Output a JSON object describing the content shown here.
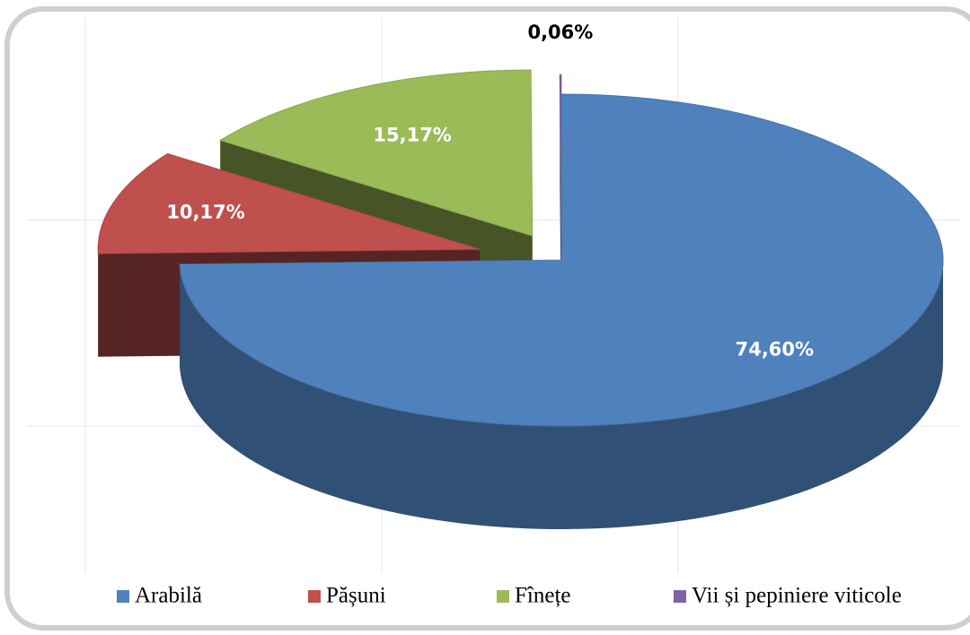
{
  "chart_data": {
    "type": "pie3d",
    "categories": [
      "Arabilă",
      "Pășuni",
      "Fînețe",
      "Vii și pepiniere viticole"
    ],
    "values": [
      74.6,
      10.17,
      15.17,
      0.06
    ],
    "value_labels": [
      "74,60%",
      "10,17%",
      "15,17%",
      "0,06%"
    ],
    "colors": [
      "#4f81bd",
      "#c0504d",
      "#9bbb59",
      "#8064a2"
    ],
    "legend": "bottom"
  }
}
